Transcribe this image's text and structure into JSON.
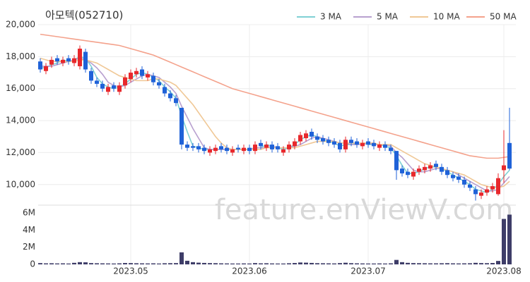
{
  "chart_data": {
    "type": "candlestick",
    "title": "아모텍(052710)",
    "watermark": "feature.enViewV.com",
    "categories": [
      null,
      null,
      null,
      null,
      null,
      null,
      null,
      null,
      null,
      null,
      null,
      null,
      null,
      null,
      null,
      null,
      "2023.05",
      null,
      null,
      null,
      null,
      null,
      null,
      null,
      null,
      null,
      null,
      null,
      null,
      null,
      null,
      null,
      null,
      null,
      null,
      null,
      null,
      "2023.06",
      null,
      null,
      null,
      null,
      null,
      null,
      null,
      null,
      null,
      null,
      null,
      null,
      null,
      null,
      null,
      null,
      null,
      null,
      null,
      null,
      "2023.07",
      null,
      null,
      null,
      null,
      null,
      null,
      null,
      null,
      null,
      null,
      null,
      null,
      null,
      null,
      null,
      null,
      null,
      null,
      null,
      null,
      null,
      null,
      null,
      "2023.08",
      null
    ],
    "open": [
      17700,
      17100,
      17500,
      17900,
      17600,
      17900,
      17600,
      17400,
      18300,
      17100,
      16500,
      16300,
      15800,
      16200,
      15800,
      16200,
      16600,
      16900,
      17200,
      16700,
      16800,
      16400,
      16100,
      15700,
      15400,
      14800,
      12500,
      12400,
      12400,
      12300,
      12000,
      12100,
      12400,
      12300,
      12000,
      12300,
      12100,
      12300,
      12100,
      12600,
      12300,
      12500,
      12400,
      12000,
      12200,
      12400,
      12700,
      12900,
      13300,
      13000,
      12900,
      12800,
      12700,
      12600,
      12200,
      12800,
      12700,
      12400,
      12700,
      12600,
      12300,
      12500,
      12300,
      12100,
      11000,
      10800,
      10500,
      10800,
      10900,
      11000,
      11300,
      11100,
      10900,
      10600,
      10500,
      10300,
      10000,
      9700,
      9300,
      9500,
      9700,
      9400,
      10900,
      12600
    ],
    "high": [
      17900,
      17600,
      18000,
      18100,
      18000,
      18100,
      18100,
      18700,
      18500,
      17300,
      16700,
      16500,
      16300,
      16400,
      16400,
      16900,
      17200,
      17300,
      17400,
      17100,
      17000,
      16600,
      16300,
      15900,
      15600,
      14800,
      12700,
      12600,
      12600,
      12500,
      12400,
      12500,
      12600,
      12500,
      12400,
      12500,
      12500,
      12500,
      12700,
      12800,
      12700,
      12700,
      12600,
      12400,
      12700,
      12900,
      13300,
      13400,
      13500,
      13200,
      13100,
      13000,
      12900,
      12800,
      13000,
      13000,
      12900,
      12800,
      12900,
      12800,
      12700,
      12700,
      12500,
      12100,
      11200,
      11000,
      11000,
      11200,
      11300,
      11400,
      11500,
      11300,
      11100,
      10800,
      10700,
      10500,
      10200,
      9900,
      9700,
      9900,
      10100,
      10700,
      13400,
      14800
    ],
    "low": [
      17000,
      16900,
      17300,
      17500,
      17400,
      17500,
      17400,
      17200,
      17000,
      16300,
      16100,
      15800,
      15600,
      15800,
      15600,
      16000,
      16400,
      16700,
      16600,
      16500,
      16200,
      16000,
      15500,
      15200,
      14900,
      12200,
      12100,
      12100,
      12000,
      11900,
      11800,
      11900,
      12000,
      11900,
      11800,
      12000,
      11900,
      11900,
      11900,
      12200,
      12100,
      12000,
      12000,
      11800,
      12000,
      12200,
      12500,
      12700,
      12800,
      12600,
      12500,
      12400,
      12300,
      12000,
      12000,
      12400,
      12300,
      12200,
      12300,
      12200,
      12100,
      12100,
      11900,
      10300,
      10500,
      10400,
      10300,
      10600,
      10700,
      10800,
      10900,
      10600,
      10400,
      10200,
      10100,
      9800,
      9600,
      9000,
      9100,
      9300,
      9500,
      9300,
      10100,
      10900
    ],
    "close": [
      17200,
      17400,
      17800,
      17700,
      17800,
      17700,
      17900,
      18500,
      17200,
      16500,
      16300,
      16000,
      16100,
      16000,
      16200,
      16700,
      17000,
      17100,
      16800,
      16900,
      16400,
      16200,
      15700,
      15400,
      15100,
      12500,
      12300,
      12300,
      12200,
      12100,
      12200,
      12300,
      12200,
      12100,
      12200,
      12200,
      12300,
      12100,
      12500,
      12400,
      12500,
      12200,
      12200,
      12200,
      12500,
      12700,
      13100,
      13200,
      13000,
      12800,
      12700,
      12600,
      12500,
      12200,
      12800,
      12600,
      12500,
      12600,
      12500,
      12400,
      12500,
      12300,
      12100,
      10900,
      10700,
      10600,
      10800,
      11000,
      11100,
      11200,
      11100,
      10800,
      10600,
      10400,
      10300,
      10000,
      9800,
      9400,
      9500,
      9700,
      9900,
      10400,
      11200,
      11000
    ],
    "volume": [
      150000,
      120000,
      130000,
      110000,
      120000,
      100000,
      180000,
      260000,
      240000,
      150000,
      130000,
      120000,
      110000,
      100000,
      120000,
      160000,
      150000,
      130000,
      120000,
      110000,
      120000,
      100000,
      130000,
      140000,
      150000,
      1400000,
      420000,
      260000,
      200000,
      170000,
      150000,
      140000,
      120000,
      110000,
      100000,
      100000,
      110000,
      100000,
      150000,
      120000,
      130000,
      110000,
      100000,
      100000,
      130000,
      160000,
      220000,
      200000,
      170000,
      140000,
      130000,
      120000,
      110000,
      150000,
      190000,
      140000,
      120000,
      110000,
      100000,
      100000,
      110000,
      100000,
      120000,
      520000,
      260000,
      180000,
      150000,
      140000,
      130000,
      120000,
      120000,
      130000,
      140000,
      120000,
      110000,
      120000,
      130000,
      180000,
      150000,
      140000,
      160000,
      400000,
      5300000,
      5800000
    ],
    "series": [
      {
        "name": "3 MA",
        "color": "#7fd0d4",
        "values": [
          17300,
          17300,
          17500,
          17600,
          17800,
          17700,
          17800,
          18000,
          17900,
          17400,
          16700,
          16300,
          16100,
          16000,
          16100,
          16300,
          16600,
          16900,
          17000,
          16900,
          16700,
          16500,
          16100,
          15800,
          15400,
          14300,
          13300,
          12400,
          12300,
          12200,
          12200,
          12200,
          12200,
          12200,
          12200,
          12200,
          12200,
          12200,
          12300,
          12300,
          12500,
          12400,
          12300,
          12200,
          12300,
          12500,
          12800,
          13000,
          13100,
          13000,
          12800,
          12700,
          12600,
          12400,
          12500,
          12500,
          12600,
          12600,
          12500,
          12500,
          12500,
          12400,
          12300,
          11800,
          11200,
          10700,
          10700,
          10800,
          11000,
          11100,
          11100,
          11000,
          10800,
          10600,
          10400,
          10200,
          10000,
          9700,
          9600,
          9500,
          9700,
          10000,
          10500,
          10900
        ]
      },
      {
        "name": "5 MA",
        "color": "#b8a0cf",
        "values": [
          17400,
          17400,
          17400,
          17500,
          17600,
          17700,
          17800,
          17900,
          17800,
          17600,
          17300,
          16900,
          16400,
          16200,
          16100,
          16200,
          16400,
          16600,
          16800,
          16900,
          16800,
          16700,
          16400,
          16100,
          15700,
          14900,
          14200,
          13500,
          12900,
          12300,
          12200,
          12200,
          12200,
          12200,
          12200,
          12200,
          12200,
          12200,
          12300,
          12300,
          12300,
          12400,
          12300,
          12300,
          12300,
          12400,
          12500,
          12700,
          12900,
          13000,
          12900,
          12800,
          12700,
          12600,
          12600,
          12500,
          12500,
          12500,
          12600,
          12500,
          12500,
          12500,
          12400,
          12000,
          11700,
          11300,
          10900,
          10800,
          10800,
          10900,
          11000,
          11000,
          10900,
          10800,
          10600,
          10400,
          10200,
          10000,
          9800,
          9600,
          9600,
          9700,
          10100,
          10500
        ]
      },
      {
        "name": "10 MA",
        "color": "#f0c896",
        "values": [
          17900,
          17800,
          17700,
          17700,
          17700,
          17700,
          17700,
          17800,
          17800,
          17700,
          17600,
          17400,
          17200,
          17000,
          16800,
          16700,
          16600,
          16500,
          16500,
          16500,
          16600,
          16600,
          16500,
          16400,
          16200,
          15800,
          15400,
          15000,
          14500,
          14000,
          13500,
          13000,
          12600,
          12300,
          12200,
          12200,
          12200,
          12200,
          12200,
          12200,
          12300,
          12300,
          12300,
          12300,
          12300,
          12300,
          12400,
          12500,
          12600,
          12700,
          12700,
          12700,
          12700,
          12600,
          12600,
          12600,
          12600,
          12600,
          12600,
          12600,
          12500,
          12500,
          12500,
          12300,
          12100,
          11900,
          11700,
          11500,
          11300,
          11200,
          11100,
          11000,
          10900,
          10800,
          10700,
          10600,
          10400,
          10200,
          10000,
          9900,
          9800,
          9800,
          9900,
          10200
        ]
      },
      {
        "name": "50 MA",
        "color": "#f4a28c",
        "values": [
          19400,
          19350,
          19300,
          19250,
          19200,
          19150,
          19100,
          19050,
          19000,
          18950,
          18900,
          18850,
          18800,
          18750,
          18700,
          18600,
          18500,
          18400,
          18300,
          18200,
          18100,
          17950,
          17800,
          17650,
          17500,
          17350,
          17200,
          17050,
          16900,
          16750,
          16600,
          16450,
          16300,
          16150,
          16000,
          15900,
          15800,
          15700,
          15600,
          15500,
          15400,
          15300,
          15200,
          15100,
          15000,
          14900,
          14800,
          14700,
          14600,
          14500,
          14400,
          14300,
          14200,
          14100,
          14000,
          13900,
          13800,
          13700,
          13600,
          13500,
          13400,
          13300,
          13200,
          13100,
          13000,
          12900,
          12800,
          12700,
          12600,
          12500,
          12400,
          12300,
          12200,
          12100,
          12000,
          11900,
          11800,
          11750,
          11700,
          11650,
          11650,
          11650,
          11700,
          11750
        ]
      }
    ],
    "up_color": "#e8282c",
    "down_color": "#1f62d8",
    "volume_color": "#3e3d68",
    "ylim": [
      8800,
      20000
    ],
    "yticks": [
      {
        "value": 10000,
        "label": "10,000"
      },
      {
        "value": 12000,
        "label": "12,000"
      },
      {
        "value": 14000,
        "label": "14,000"
      },
      {
        "value": 16000,
        "label": "16,000"
      },
      {
        "value": 18000,
        "label": "18,000"
      },
      {
        "value": 20000,
        "label": "20,000"
      }
    ],
    "volume_ylim": [
      0,
      6000000
    ],
    "volume_yticks": [
      0,
      {
        "value": 2000000,
        "label": "2M"
      },
      {
        "value": 4000000,
        "label": "4M"
      },
      {
        "value": 6000000,
        "label": "6M"
      }
    ],
    "grid": true,
    "legend": "top-right"
  }
}
